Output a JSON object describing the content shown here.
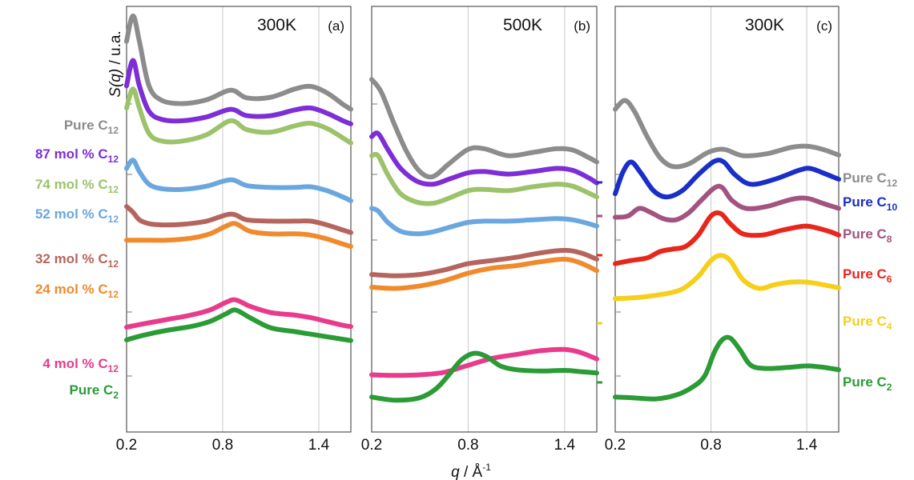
{
  "chart_data": [
    {
      "type": "line",
      "panel_temperature": "300K",
      "panel_tag": "(a)",
      "x_ticks": [
        "0.2",
        "0.8",
        "1.4"
      ],
      "xlim": [
        0.2,
        1.6
      ],
      "grid": "vertical",
      "series": [
        {
          "name": "Pure C",
          "subscript": "12",
          "color": "#8c8c8c",
          "x": [
            0.2,
            0.24,
            0.28,
            0.34,
            0.42,
            0.55,
            0.7,
            0.85,
            0.95,
            1.1,
            1.25,
            1.35,
            1.45,
            1.55,
            1.6
          ],
          "y": [
            3.55,
            3.95,
            3.55,
            2.85,
            2.62,
            2.57,
            2.63,
            2.78,
            2.66,
            2.67,
            2.8,
            2.84,
            2.74,
            2.56,
            2.48
          ]
        },
        {
          "name": "87 mol % C",
          "subscript": "12",
          "color": "#7d2ed6",
          "x": [
            0.2,
            0.24,
            0.28,
            0.34,
            0.42,
            0.55,
            0.7,
            0.85,
            0.95,
            1.1,
            1.25,
            1.35,
            1.45,
            1.55,
            1.6
          ],
          "y": [
            2.85,
            3.25,
            2.85,
            2.45,
            2.32,
            2.3,
            2.36,
            2.48,
            2.38,
            2.38,
            2.47,
            2.5,
            2.42,
            2.3,
            2.25
          ]
        },
        {
          "name": "74 mol % C",
          "subscript": "12",
          "color": "#9cc26a",
          "x": [
            0.2,
            0.24,
            0.28,
            0.34,
            0.42,
            0.55,
            0.7,
            0.85,
            0.95,
            1.1,
            1.25,
            1.35,
            1.45,
            1.55,
            1.6
          ],
          "y": [
            2.5,
            2.8,
            2.5,
            2.1,
            1.98,
            1.98,
            2.08,
            2.3,
            2.16,
            2.12,
            2.22,
            2.26,
            2.18,
            2.03,
            1.95
          ]
        },
        {
          "name": "52 mol % C",
          "subscript": "12",
          "color": "#6aa7de",
          "x": [
            0.2,
            0.24,
            0.28,
            0.34,
            0.42,
            0.55,
            0.7,
            0.85,
            0.95,
            1.1,
            1.25,
            1.35,
            1.45,
            1.55,
            1.6
          ],
          "y": [
            1.55,
            1.68,
            1.5,
            1.3,
            1.23,
            1.22,
            1.27,
            1.37,
            1.28,
            1.25,
            1.25,
            1.26,
            1.2,
            1.1,
            1.04
          ]
        },
        {
          "name": "32 mol % C",
          "subscript": "12",
          "color": "#b5655d",
          "x": [
            0.2,
            0.24,
            0.28,
            0.34,
            0.42,
            0.55,
            0.7,
            0.85,
            0.95,
            1.1,
            1.25,
            1.35,
            1.45,
            1.55,
            1.6
          ],
          "y": [
            0.95,
            0.86,
            0.74,
            0.68,
            0.66,
            0.67,
            0.72,
            0.83,
            0.74,
            0.72,
            0.72,
            0.72,
            0.66,
            0.58,
            0.54
          ]
        },
        {
          "name": "24 mol % C",
          "subscript": "12",
          "color": "#f08a2c",
          "x": [
            0.2,
            0.3,
            0.45,
            0.6,
            0.72,
            0.82,
            0.88,
            0.97,
            1.1,
            1.25,
            1.35,
            1.45,
            1.55,
            1.6
          ],
          "y": [
            0.42,
            0.42,
            0.42,
            0.45,
            0.52,
            0.64,
            0.68,
            0.56,
            0.52,
            0.52,
            0.5,
            0.44,
            0.36,
            0.32
          ]
        },
        {
          "name": "4 mol % C",
          "subscript": "12",
          "color": "#e83b8c",
          "x": [
            0.2,
            0.3,
            0.45,
            0.6,
            0.72,
            0.82,
            0.88,
            0.97,
            1.1,
            1.25,
            1.35,
            1.45,
            1.55,
            1.6
          ],
          "y": [
            -0.95,
            -0.9,
            -0.83,
            -0.76,
            -0.68,
            -0.56,
            -0.52,
            -0.62,
            -0.72,
            -0.76,
            -0.8,
            -0.86,
            -0.92,
            -0.94
          ]
        },
        {
          "name": "Pure C",
          "subscript": "2",
          "color": "#2a9b35",
          "x": [
            0.2,
            0.3,
            0.45,
            0.6,
            0.72,
            0.82,
            0.88,
            0.97,
            1.1,
            1.25,
            1.35,
            1.45,
            1.55,
            1.6
          ],
          "y": [
            -1.15,
            -1.08,
            -1.0,
            -0.94,
            -0.86,
            -0.74,
            -0.68,
            -0.8,
            -0.96,
            -1.02,
            -1.06,
            -1.1,
            -1.14,
            -1.16
          ]
        }
      ]
    },
    {
      "type": "line",
      "panel_temperature": "500K",
      "panel_tag": "(b)",
      "x_ticks": [
        "0.2",
        "0.8",
        "1.4"
      ],
      "xlim": [
        0.2,
        1.6
      ],
      "grid": "vertical",
      "series": [
        {
          "color": "#8c8c8c",
          "x": [
            0.2,
            0.26,
            0.34,
            0.42,
            0.5,
            0.58,
            0.68,
            0.8,
            0.9,
            1.05,
            1.2,
            1.35,
            1.45,
            1.55,
            1.6
          ],
          "y": [
            2.95,
            2.75,
            2.25,
            1.8,
            1.5,
            1.42,
            1.62,
            1.85,
            1.86,
            1.75,
            1.8,
            1.86,
            1.84,
            1.72,
            1.65
          ]
        },
        {
          "color": "#7d2ed6",
          "x": [
            0.2,
            0.24,
            0.3,
            0.38,
            0.48,
            0.58,
            0.68,
            0.8,
            0.9,
            1.05,
            1.2,
            1.35,
            1.45,
            1.55,
            1.6
          ],
          "y": [
            2.05,
            2.1,
            1.85,
            1.55,
            1.35,
            1.3,
            1.38,
            1.48,
            1.5,
            1.46,
            1.5,
            1.55,
            1.52,
            1.4,
            1.32
          ]
        },
        {
          "color": "#9cc26a",
          "x": [
            0.2,
            0.24,
            0.3,
            0.38,
            0.48,
            0.58,
            0.68,
            0.8,
            0.9,
            1.05,
            1.2,
            1.35,
            1.45,
            1.55,
            1.6
          ],
          "y": [
            1.75,
            1.75,
            1.45,
            1.15,
            1.02,
            1.0,
            1.08,
            1.2,
            1.22,
            1.2,
            1.26,
            1.3,
            1.27,
            1.16,
            1.1
          ]
        },
        {
          "color": "#6aa7de",
          "x": [
            0.2,
            0.24,
            0.3,
            0.38,
            0.48,
            0.58,
            0.68,
            0.8,
            0.9,
            1.05,
            1.2,
            1.35,
            1.45,
            1.55,
            1.6
          ],
          "y": [
            0.92,
            0.88,
            0.7,
            0.56,
            0.52,
            0.55,
            0.62,
            0.7,
            0.72,
            0.72,
            0.74,
            0.76,
            0.74,
            0.68,
            0.64
          ]
        },
        {
          "color": "#b5655d",
          "x": [
            0.2,
            0.35,
            0.5,
            0.65,
            0.8,
            0.95,
            1.1,
            1.25,
            1.4,
            1.5,
            1.6
          ],
          "y": [
            -0.12,
            -0.14,
            -0.12,
            -0.05,
            0.05,
            0.1,
            0.15,
            0.22,
            0.26,
            0.22,
            0.12
          ]
        },
        {
          "color": "#f08a2c",
          "x": [
            0.2,
            0.35,
            0.5,
            0.65,
            0.8,
            0.95,
            1.1,
            1.25,
            1.4,
            1.5,
            1.6
          ],
          "y": [
            -0.32,
            -0.34,
            -0.3,
            -0.22,
            -0.1,
            -0.02,
            0.02,
            0.08,
            0.12,
            0.06,
            -0.06
          ]
        },
        {
          "color": "#e83b8c",
          "x": [
            0.2,
            0.35,
            0.5,
            0.65,
            0.8,
            0.95,
            1.1,
            1.25,
            1.4,
            1.5,
            1.6
          ],
          "y": [
            -1.7,
            -1.71,
            -1.7,
            -1.66,
            -1.55,
            -1.44,
            -1.38,
            -1.32,
            -1.3,
            -1.35,
            -1.45
          ]
        },
        {
          "color": "#2a9b35",
          "x": [
            0.2,
            0.35,
            0.5,
            0.6,
            0.68,
            0.76,
            0.84,
            0.92,
            1.0,
            1.1,
            1.25,
            1.4,
            1.5,
            1.6
          ],
          "y": [
            -2.05,
            -2.1,
            -2.06,
            -1.92,
            -1.7,
            -1.46,
            -1.36,
            -1.42,
            -1.56,
            -1.62,
            -1.64,
            -1.63,
            -1.65,
            -1.67
          ]
        }
      ]
    },
    {
      "type": "line",
      "panel_temperature": "300K",
      "panel_tag": "(c)",
      "x_ticks": [
        "0.2",
        "0.8",
        "1.4"
      ],
      "xlim": [
        0.2,
        1.6
      ],
      "grid": "vertical",
      "series": [
        {
          "name": "Pure C",
          "subscript": "12",
          "color": "#8c8c8c",
          "x": [
            0.2,
            0.26,
            0.32,
            0.4,
            0.48,
            0.56,
            0.66,
            0.78,
            0.88,
            1.0,
            1.15,
            1.3,
            1.4,
            1.5,
            1.6
          ],
          "y": [
            2.48,
            2.62,
            2.45,
            2.05,
            1.72,
            1.58,
            1.62,
            1.8,
            1.85,
            1.75,
            1.78,
            1.88,
            1.9,
            1.85,
            1.76
          ]
        },
        {
          "name": "Pure C",
          "subscript": "10",
          "color": "#1a2ec8",
          "x": [
            0.2,
            0.25,
            0.3,
            0.36,
            0.44,
            0.52,
            0.62,
            0.72,
            0.82,
            0.88,
            0.95,
            1.05,
            1.2,
            1.35,
            1.42,
            1.5,
            1.6
          ],
          "y": [
            1.15,
            1.5,
            1.65,
            1.48,
            1.2,
            1.1,
            1.2,
            1.45,
            1.66,
            1.65,
            1.45,
            1.3,
            1.38,
            1.52,
            1.55,
            1.48,
            1.38
          ]
        },
        {
          "name": "Pure C",
          "subscript": "8",
          "color": "#a3537f",
          "x": [
            0.2,
            0.28,
            0.35,
            0.42,
            0.5,
            0.58,
            0.66,
            0.74,
            0.82,
            0.87,
            0.93,
            1.02,
            1.15,
            1.3,
            1.4,
            1.5,
            1.6
          ],
          "y": [
            0.78,
            0.8,
            0.92,
            0.86,
            0.76,
            0.74,
            0.85,
            1.05,
            1.24,
            1.25,
            1.05,
            0.92,
            0.95,
            1.06,
            1.08,
            1.0,
            0.92
          ]
        },
        {
          "name": "Pure C",
          "subscript": "6",
          "color": "#e8261c",
          "x": [
            0.2,
            0.3,
            0.4,
            0.48,
            0.56,
            0.64,
            0.72,
            0.8,
            0.86,
            0.92,
            1.0,
            1.12,
            1.25,
            1.38,
            1.45,
            1.55,
            1.6
          ],
          "y": [
            0.05,
            0.1,
            0.14,
            0.24,
            0.28,
            0.32,
            0.5,
            0.8,
            0.84,
            0.68,
            0.52,
            0.5,
            0.58,
            0.64,
            0.62,
            0.55,
            0.5
          ]
        },
        {
          "name": "Pure C",
          "subscript": "4",
          "color": "#f5cf1a",
          "x": [
            0.2,
            0.35,
            0.5,
            0.62,
            0.72,
            0.8,
            0.86,
            0.92,
            1.0,
            1.1,
            1.2,
            1.3,
            1.4,
            1.5,
            1.6
          ],
          "y": [
            -0.5,
            -0.48,
            -0.43,
            -0.35,
            -0.15,
            0.1,
            0.18,
            0.1,
            -0.2,
            -0.34,
            -0.28,
            -0.24,
            -0.24,
            -0.28,
            -0.33
          ]
        },
        {
          "name": "Pure C",
          "subscript": "2",
          "color": "#2a9b35",
          "x": [
            0.2,
            0.3,
            0.45,
            0.58,
            0.68,
            0.76,
            0.82,
            0.87,
            0.92,
            0.98,
            1.05,
            1.15,
            1.3,
            1.4,
            1.5,
            1.6
          ],
          "y": [
            -2.05,
            -2.06,
            -2.08,
            -2.02,
            -1.9,
            -1.72,
            -1.35,
            -1.15,
            -1.12,
            -1.3,
            -1.55,
            -1.6,
            -1.58,
            -1.56,
            -1.58,
            -1.62
          ]
        }
      ]
    }
  ],
  "y_axis_label_var": "S(q)",
  "y_axis_label_unit": " / u.a.",
  "x_axis_label_var": "q",
  "x_axis_label_unit": " / Å",
  "x_axis_label_exp": "-1"
}
